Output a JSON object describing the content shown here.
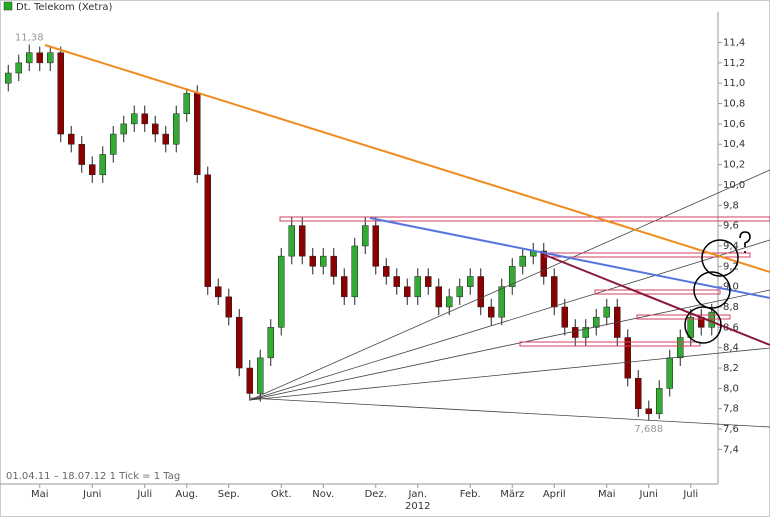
{
  "chart_data": {
    "type": "candlestick",
    "title": "Dt. Telekom (Xetra)",
    "footnote": "01.04.11 – 18.07.12   1 Tick = 1 Tag",
    "year_label": "2012",
    "legend_color": "#22aa22",
    "up_color": "#33aa33",
    "down_color": "#8b0000",
    "categories": [
      null,
      null,
      null,
      "Mai",
      null,
      null,
      null,
      null,
      "Juni",
      null,
      null,
      null,
      null,
      "Juli",
      null,
      null,
      null,
      "Aug.",
      null,
      null,
      null,
      "Sep.",
      null,
      null,
      null,
      null,
      "Okt.",
      null,
      null,
      null,
      "Nov.",
      null,
      null,
      null,
      null,
      "Dez.",
      null,
      null,
      null,
      "Jan.",
      null,
      null,
      null,
      null,
      "Feb.",
      null,
      null,
      null,
      "März",
      null,
      null,
      null,
      "April",
      null,
      null,
      null,
      null,
      "Mai",
      null,
      null,
      null,
      "Juni",
      null,
      null,
      null,
      "Juli",
      null,
      null
    ],
    "open": [
      11.0,
      11.1,
      11.2,
      11.3,
      11.2,
      11.3,
      10.5,
      10.4,
      10.2,
      10.1,
      10.3,
      10.5,
      10.6,
      10.7,
      10.6,
      10.5,
      10.4,
      10.7,
      10.9,
      10.1,
      9.0,
      8.9,
      8.7,
      8.2,
      7.95,
      8.3,
      8.6,
      9.3,
      9.6,
      9.3,
      9.2,
      9.3,
      9.1,
      8.9,
      9.4,
      9.6,
      9.2,
      9.1,
      9.0,
      8.9,
      9.1,
      9.0,
      8.8,
      8.9,
      9.0,
      9.1,
      8.8,
      8.7,
      9.0,
      9.2,
      9.3,
      9.35,
      9.1,
      8.8,
      8.6,
      8.5,
      8.6,
      8.7,
      8.8,
      8.5,
      8.1,
      7.8,
      7.75,
      8.0,
      8.3,
      8.5,
      8.7,
      8.6
    ],
    "high": [
      11.18,
      11.28,
      11.38,
      11.36,
      11.36,
      11.36,
      10.58,
      10.48,
      10.28,
      10.38,
      10.58,
      10.68,
      10.78,
      10.78,
      10.68,
      10.58,
      10.78,
      10.95,
      10.98,
      10.18,
      9.08,
      8.98,
      8.78,
      8.28,
      8.38,
      8.68,
      9.38,
      9.68,
      9.68,
      9.38,
      9.38,
      9.38,
      9.18,
      9.48,
      9.68,
      9.68,
      9.28,
      9.18,
      9.08,
      9.18,
      9.18,
      9.08,
      8.98,
      9.08,
      9.18,
      9.18,
      8.88,
      9.08,
      9.28,
      9.38,
      9.43,
      9.43,
      9.18,
      8.88,
      8.68,
      8.68,
      8.78,
      8.88,
      8.88,
      8.58,
      8.18,
      7.88,
      8.08,
      8.38,
      8.58,
      8.78,
      8.78,
      8.83
    ],
    "low": [
      10.92,
      11.02,
      11.12,
      11.12,
      11.12,
      10.42,
      10.32,
      10.12,
      10.02,
      10.02,
      10.22,
      10.42,
      10.52,
      10.52,
      10.42,
      10.32,
      10.32,
      10.62,
      10.02,
      8.92,
      8.82,
      8.62,
      8.12,
      7.88,
      7.87,
      8.22,
      8.52,
      9.22,
      9.22,
      9.12,
      9.12,
      9.02,
      8.82,
      8.82,
      9.32,
      9.12,
      9.02,
      8.92,
      8.82,
      8.82,
      8.92,
      8.72,
      8.72,
      8.82,
      8.92,
      8.72,
      8.62,
      8.62,
      8.92,
      9.12,
      9.22,
      9.02,
      8.72,
      8.52,
      8.42,
      8.42,
      8.52,
      8.62,
      8.42,
      8.02,
      7.72,
      7.688,
      7.7,
      7.92,
      8.22,
      8.42,
      8.52,
      8.52
    ],
    "close": [
      11.1,
      11.2,
      11.3,
      11.2,
      11.3,
      10.5,
      10.4,
      10.2,
      10.1,
      10.3,
      10.5,
      10.6,
      10.7,
      10.6,
      10.5,
      10.4,
      10.7,
      10.9,
      10.1,
      9.0,
      8.9,
      8.7,
      8.2,
      7.95,
      8.3,
      8.6,
      9.3,
      9.6,
      9.3,
      9.2,
      9.3,
      9.1,
      8.9,
      9.4,
      9.6,
      9.2,
      9.1,
      9.0,
      8.9,
      9.1,
      9.0,
      8.8,
      8.9,
      9.0,
      9.1,
      8.8,
      8.7,
      9.0,
      9.2,
      9.3,
      9.35,
      9.1,
      8.8,
      8.6,
      8.5,
      8.6,
      8.7,
      8.8,
      8.5,
      8.1,
      7.8,
      7.75,
      8.0,
      8.3,
      8.5,
      8.7,
      8.6,
      8.75
    ],
    "annotations": [
      {
        "index": 2,
        "value": 11.38,
        "label": "11,38"
      },
      {
        "index": 61,
        "value": 7.688,
        "label": "7,688"
      }
    ],
    "ylim": [
      7.06,
      11.7
    ],
    "yticks": [
      {
        "value": 7.4,
        "label": "7,4"
      },
      {
        "value": 7.6,
        "label": "7,6"
      },
      {
        "value": 7.8,
        "label": "7,8"
      },
      {
        "value": 8.0,
        "label": "8,0"
      },
      {
        "value": 8.2,
        "label": "8,2"
      },
      {
        "value": 8.4,
        "label": "8,4"
      },
      {
        "value": 8.6,
        "label": "8,6"
      },
      {
        "value": 8.8,
        "label": "8,8"
      },
      {
        "value": 9.0,
        "label": "9,0"
      },
      {
        "value": 9.2,
        "label": "9,2"
      },
      {
        "value": 9.4,
        "label": "9,4"
      },
      {
        "value": 9.6,
        "label": "9,6"
      },
      {
        "value": 9.8,
        "label": "9,8"
      },
      {
        "value": 10.0,
        "label": "10,0"
      },
      {
        "value": 10.2,
        "label": "10,2"
      },
      {
        "value": 10.4,
        "label": "10,4"
      },
      {
        "value": 10.6,
        "label": "10,6"
      },
      {
        "value": 10.8,
        "label": "10,8"
      },
      {
        "value": 11.0,
        "label": "11,0"
      },
      {
        "value": 11.2,
        "label": "11,2"
      },
      {
        "value": 11.4,
        "label": "11,4"
      }
    ]
  }
}
